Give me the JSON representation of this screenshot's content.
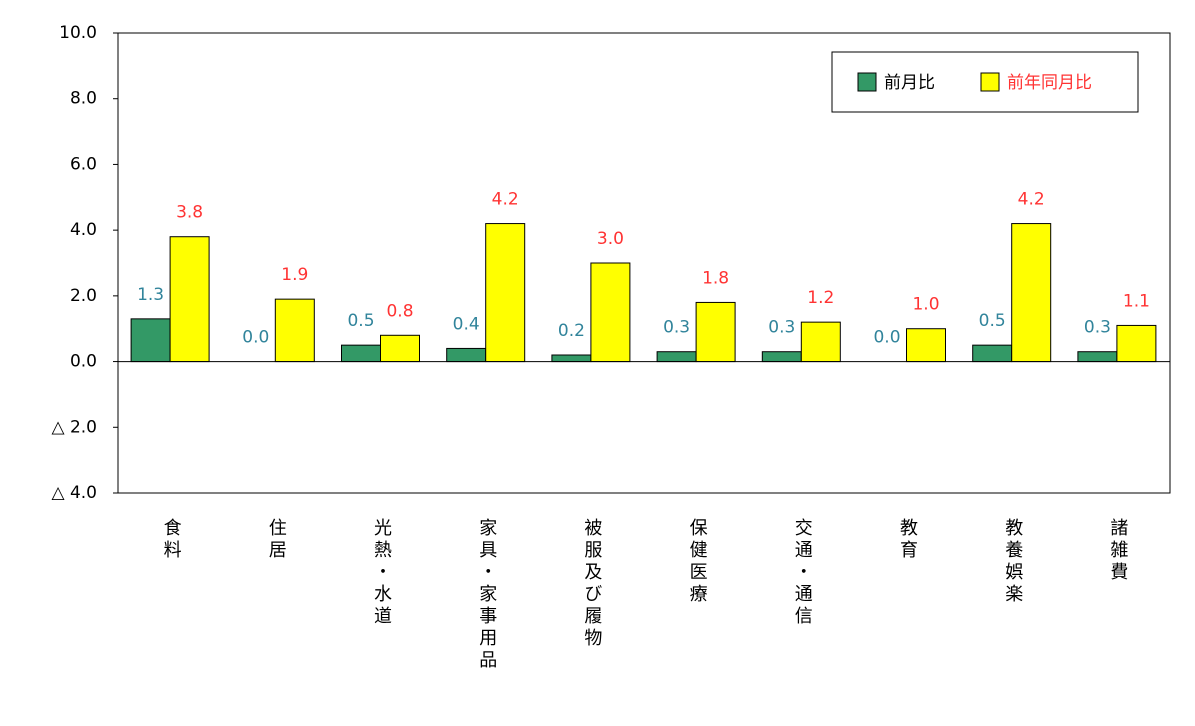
{
  "chart_data": {
    "type": "bar",
    "categories": [
      "食料",
      "住居",
      "光熱・水道",
      "家具・家事用品",
      "被服及び履物",
      "保健医療",
      "交通・通信",
      "教育",
      "教養娯楽",
      "諸雑費"
    ],
    "series": [
      {
        "name": "前月比",
        "color": "#339966",
        "label_color": "#31849b",
        "legend_color": "#000000",
        "values": [
          1.3,
          0.0,
          0.5,
          0.4,
          0.2,
          0.3,
          0.3,
          0.0,
          0.5,
          0.3
        ],
        "value_labels": [
          "1.3",
          "0.0",
          "0.5",
          "0.4",
          "0.2",
          "0.3",
          "0.3",
          "0.0",
          "0.5",
          "0.3"
        ]
      },
      {
        "name": "前年同月比",
        "color": "#ffff00",
        "label_color": "#ff3333",
        "legend_color": "#ff3333",
        "values": [
          3.8,
          1.9,
          0.8,
          4.2,
          3.0,
          1.8,
          1.2,
          1.0,
          4.2,
          1.1
        ],
        "value_labels": [
          "3.8",
          "1.9",
          "0.8",
          "4.2",
          "3.0",
          "1.8",
          "1.2",
          "1.0",
          "4.2",
          "1.1"
        ]
      }
    ],
    "ylim": [
      -4,
      10
    ],
    "yticks": [
      {
        "value": 10,
        "label": "10.0"
      },
      {
        "value": 8,
        "label": "8.0"
      },
      {
        "value": 6,
        "label": "6.0"
      },
      {
        "value": 4,
        "label": "4.0"
      },
      {
        "value": 2,
        "label": "2.0"
      },
      {
        "value": 0,
        "label": "0.0"
      },
      {
        "value": -2,
        "label": "△ 2.0"
      },
      {
        "value": -4,
        "label": "△ 4.0"
      }
    ],
    "legend": "upper right"
  }
}
